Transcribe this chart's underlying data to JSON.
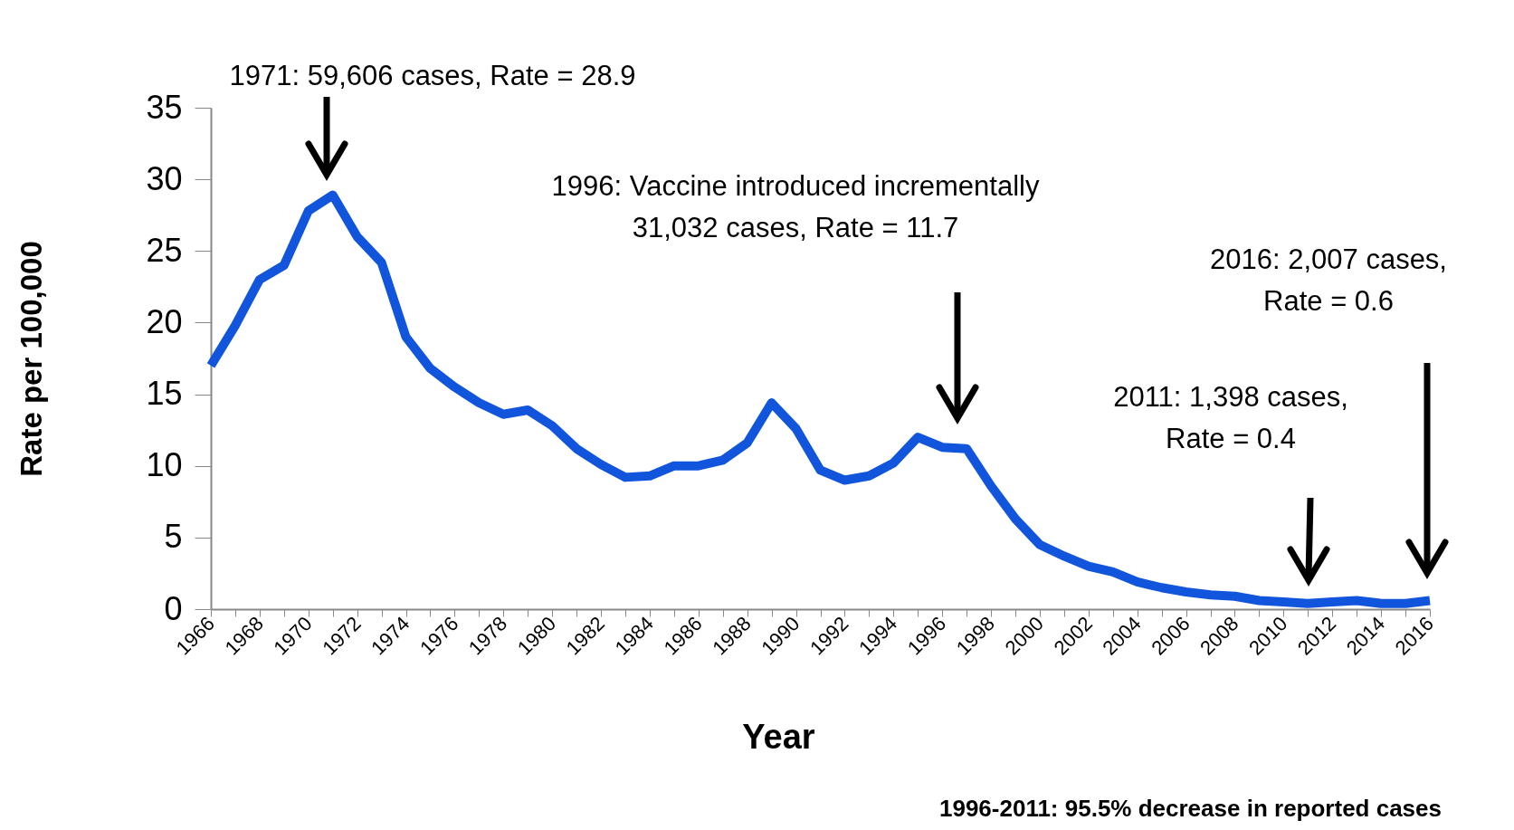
{
  "chart_data": {
    "type": "line",
    "xlabel": "Year",
    "ylabel": "Rate per 100,000",
    "categories": [
      "1966",
      null,
      "1968",
      null,
      "1970",
      null,
      "1972",
      null,
      "1974",
      null,
      "1976",
      null,
      "1978",
      null,
      "1980",
      null,
      "1982",
      null,
      "1984",
      null,
      "1986",
      null,
      "1988",
      null,
      "1990",
      null,
      "1992",
      null,
      "1994",
      null,
      "1996",
      null,
      "1998",
      null,
      "2000",
      null,
      "2002",
      null,
      "2004",
      null,
      "2006",
      null,
      "2008",
      null,
      "2010",
      null,
      "2012",
      null,
      "2014",
      null,
      "2016"
    ],
    "series": [
      {
        "color": "#1155dd",
        "values": [
          17,
          19.8,
          23,
          24,
          27.8,
          28.9,
          26,
          24.2,
          19,
          16.8,
          15.5,
          14.4,
          13.6,
          13.9,
          12.8,
          11.2,
          10.1,
          9.2,
          9.3,
          10,
          10,
          10.4,
          11.6,
          14.4,
          12.6,
          9.7,
          9,
          9.3,
          10.2,
          12,
          11.3,
          11.2,
          8.6,
          6.3,
          4.5,
          3.7,
          3,
          2.6,
          1.9,
          1.5,
          1.2,
          1,
          0.9,
          0.6,
          0.5,
          0.4,
          0.5,
          0.6,
          0.4,
          0.4,
          0.6
        ]
      }
    ],
    "ylim": [
      0,
      35
    ],
    "yticks": [
      0,
      5,
      10,
      15,
      20,
      25,
      30,
      35
    ],
    "grid": false,
    "marker": "none",
    "line_style": "solid",
    "annotations": [
      "1971: 59,606 cases, Rate = 28.9",
      "1996: Vaccine introduced incrementally\n31,032 cases, Rate = 11.7",
      "2016: 2,007 cases,\nRate = 0.6",
      "2011: 1,398 cases,\nRate = 0.4",
      "1996-2011: 95.5% decrease in reported cases"
    ]
  }
}
